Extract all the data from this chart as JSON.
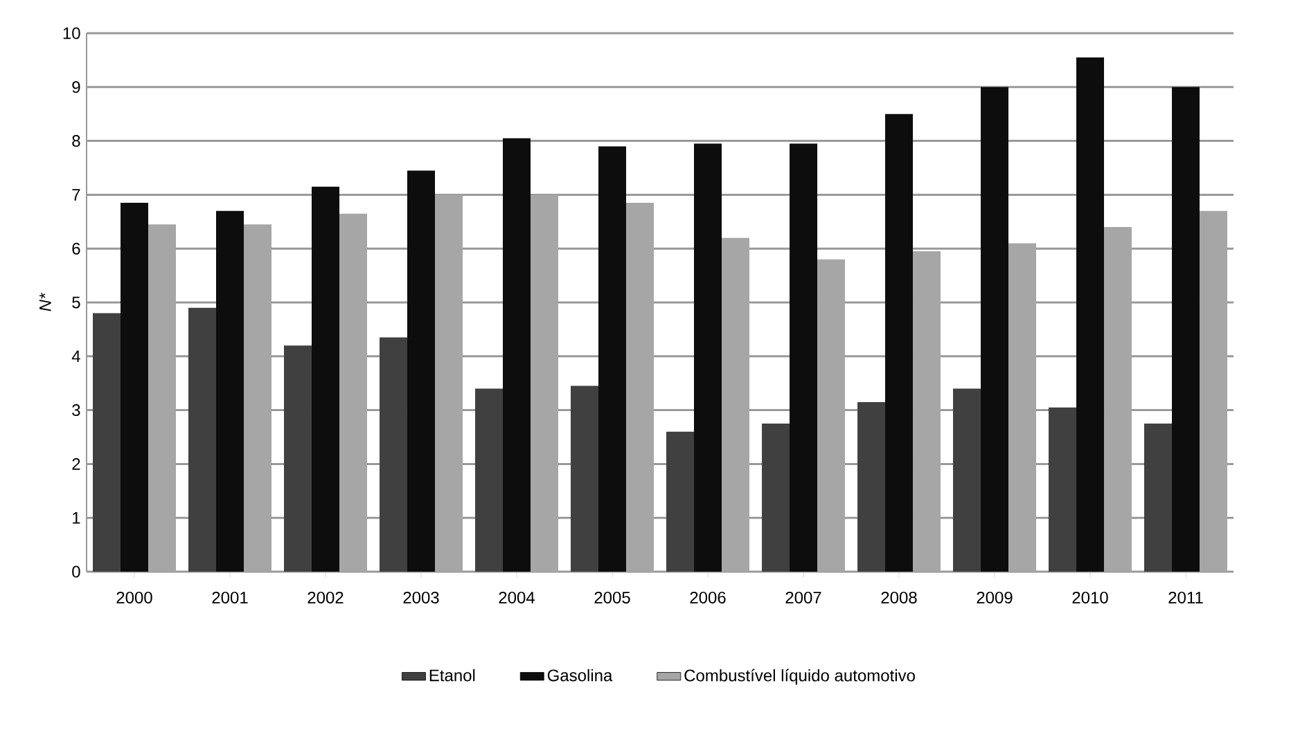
{
  "chart_data": {
    "type": "bar",
    "ylabel": "N*",
    "categories": [
      "2000",
      "2001",
      "2002",
      "2003",
      "2004",
      "2005",
      "2006",
      "2007",
      "2008",
      "2009",
      "2010",
      "2011"
    ],
    "series": [
      {
        "name": "Etanol",
        "color": "#404040",
        "values": [
          4.8,
          4.9,
          4.2,
          4.35,
          3.4,
          3.45,
          2.6,
          2.75,
          3.15,
          3.4,
          3.05,
          2.75
        ]
      },
      {
        "name": "Gasolina",
        "color": "#0d0d0d",
        "values": [
          6.85,
          6.7,
          7.15,
          7.45,
          8.05,
          7.9,
          7.95,
          7.95,
          8.5,
          9.0,
          9.55,
          9.0
        ]
      },
      {
        "name": "Combustível líquido automotivo",
        "color": "#a6a6a6",
        "values": [
          6.45,
          6.45,
          6.65,
          7.0,
          7.0,
          6.85,
          6.2,
          5.8,
          5.95,
          6.1,
          6.4,
          6.7
        ]
      }
    ],
    "ylim": [
      0,
      10
    ],
    "yticks": [
      0,
      1,
      2,
      3,
      4,
      5,
      6,
      7,
      8,
      9,
      10
    ],
    "grid": "y",
    "legend": "bottom"
  }
}
